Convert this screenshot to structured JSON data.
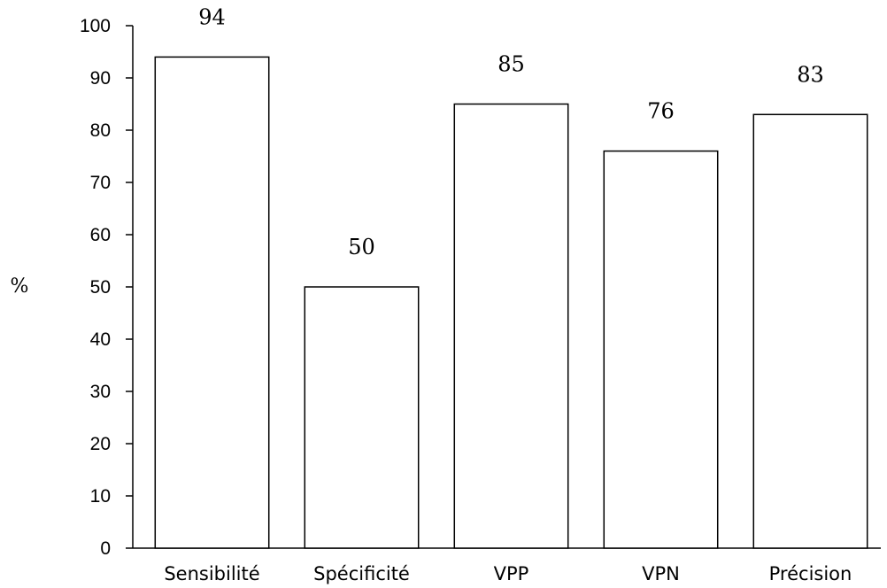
{
  "chart_data": {
    "type": "bar",
    "categories": [
      "Sensibilité",
      "Spécificité",
      "VPP",
      "VPN",
      "Précision"
    ],
    "values": [
      94,
      50,
      85,
      76,
      83
    ],
    "data_labels": [
      "94",
      "50",
      "85",
      "76",
      "83"
    ],
    "title": "",
    "xlabel": "",
    "ylabel": "%",
    "ylim": [
      0,
      100
    ],
    "yticks": [
      "0",
      "10",
      "20",
      "30",
      "40",
      "50",
      "60",
      "70",
      "80",
      "90",
      "100"
    ],
    "grid": false,
    "legend": "none",
    "bar_fill": "#ffffff",
    "bar_stroke": "#000000"
  }
}
